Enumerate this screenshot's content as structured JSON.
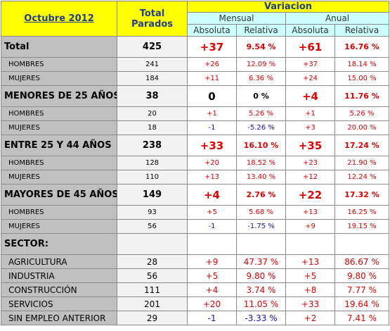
{
  "header": {
    "period": "Octubre 2012",
    "total": "Total Parados",
    "variation": "Variacion",
    "monthly": "Mensual",
    "annual": "Anual",
    "columns": [
      "Absoluta",
      "Relativa",
      "Absoluta",
      "Relativa"
    ]
  },
  "sections": [
    {
      "label": "Total",
      "cells": [
        "425",
        "+37",
        "9.54 %",
        "+61",
        "16.76 %"
      ],
      "rows": [
        {
          "label": "HOMBRES",
          "cells": [
            "241",
            "+26",
            "12.09 %",
            "+37",
            "18.14 %"
          ]
        },
        {
          "label": "MUJERES",
          "cells": [
            "184",
            "+11",
            "6.36 %",
            "+24",
            "15.00 %"
          ]
        }
      ]
    },
    {
      "label": "MENORES DE 25 AÑOS:",
      "cells": [
        "38",
        "0",
        "0 %",
        "+4",
        "11.76 %"
      ],
      "rows": [
        {
          "label": "HOMBRES",
          "cells": [
            "20",
            "+1",
            "5.26 %",
            "+1",
            "5.26 %"
          ]
        },
        {
          "label": "MUJERES",
          "cells": [
            "18",
            "-1",
            "-5.26 %",
            "+3",
            "20.00 %"
          ]
        }
      ]
    },
    {
      "label": "ENTRE 25 Y 44 AÑOS",
      "cells": [
        "238",
        "+33",
        "16.10 %",
        "+35",
        "17.24 %"
      ],
      "rows": [
        {
          "label": "HOMBRES",
          "cells": [
            "128",
            "+20",
            "18.52 %",
            "+23",
            "21.90 %"
          ]
        },
        {
          "label": "MUJERES",
          "cells": [
            "110",
            "+13",
            "13.40 %",
            "+12",
            "12.24 %"
          ]
        }
      ]
    },
    {
      "label": "MAYORES DE 45 AÑOS",
      "cells": [
        "149",
        "+4",
        "2.76 %",
        "+22",
        "17.32 %"
      ],
      "rows": [
        {
          "label": "HOMBRES",
          "cells": [
            "93",
            "+5",
            "5.68 %",
            "+13",
            "16.25 %"
          ]
        },
        {
          "label": "MUJERES",
          "cells": [
            "56",
            "-1",
            "-1.75 %",
            "+9",
            "19.15 %"
          ]
        }
      ]
    },
    {
      "label": "SECTOR:",
      "rows": [
        {
          "label": "AGRICULTURA",
          "cells": [
            "28",
            "+9",
            "47.37 %",
            "+13",
            "86.67 %"
          ]
        },
        {
          "label": "INDUSTRIA",
          "cells": [
            "56",
            "+5",
            "9.80 %",
            "+5",
            "9.80 %"
          ]
        },
        {
          "label": "CONSTRUCCIÓN",
          "cells": [
            "111",
            "+4",
            "3.74 %",
            "+8",
            "7.77 %"
          ]
        },
        {
          "label": "SERVICIOS",
          "cells": [
            "201",
            "+20",
            "11.05 %",
            "+33",
            "19.64 %"
          ]
        },
        {
          "label": "SIN EMPLEO ANTERIOR",
          "cells": [
            "29",
            "-1",
            "-3.33 %",
            "+2",
            "7.41 %"
          ]
        }
      ]
    }
  ]
}
